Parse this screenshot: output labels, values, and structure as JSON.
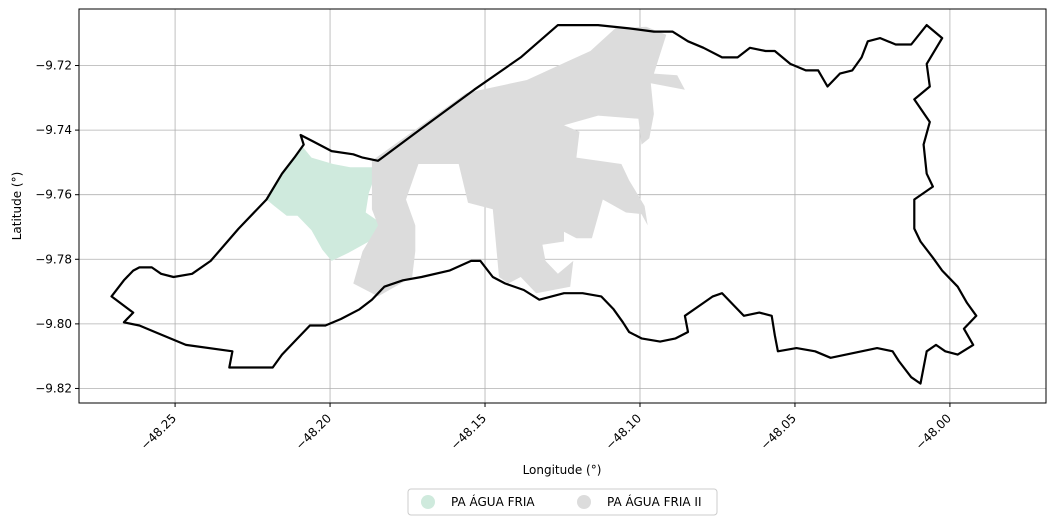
{
  "chart_data": {
    "type": "map",
    "xlabel": "Longitude (°)",
    "ylabel": "Latitude (°)",
    "xlim": [
      -48.281,
      -47.969
    ],
    "ylim": [
      -9.8245,
      -9.7025
    ],
    "grid": true,
    "x_ticks": [
      {
        "value": -48.25,
        "label": "−48.25"
      },
      {
        "value": -48.2,
        "label": "−48.20"
      },
      {
        "value": -48.15,
        "label": "−48.15"
      },
      {
        "value": -48.1,
        "label": "−48.10"
      },
      {
        "value": -48.05,
        "label": "−48.05"
      },
      {
        "value": -48.0,
        "label": "−48.00"
      }
    ],
    "y_ticks": [
      {
        "value": -9.72,
        "label": "−9.72"
      },
      {
        "value": -9.74,
        "label": "−9.74"
      },
      {
        "value": -9.76,
        "label": "−9.76"
      },
      {
        "value": -9.78,
        "label": "−9.78"
      },
      {
        "value": -9.8,
        "label": "−9.80"
      },
      {
        "value": -9.82,
        "label": "−9.82"
      }
    ],
    "legend_position": "bottom-center",
    "areas": [
      {
        "name": "PA ÁGUA FRIA",
        "color": "#cfeadd",
        "coords": [
          [
            -48.209,
            -9.745
          ],
          [
            -48.206,
            -9.7485
          ],
          [
            -48.199,
            -9.7505
          ],
          [
            -48.1935,
            -9.7515
          ],
          [
            -48.1845,
            -9.7515
          ],
          [
            -48.1875,
            -9.7595
          ],
          [
            -48.1885,
            -9.7655
          ],
          [
            -48.1825,
            -9.7695
          ],
          [
            -48.1865,
            -9.774
          ],
          [
            -48.194,
            -9.778
          ],
          [
            -48.1995,
            -9.7805
          ],
          [
            -48.2025,
            -9.777
          ],
          [
            -48.206,
            -9.771
          ],
          [
            -48.2105,
            -9.7665
          ],
          [
            -48.214,
            -9.7665
          ],
          [
            -48.218,
            -9.7635
          ],
          [
            -48.2205,
            -9.7615
          ],
          [
            -48.2155,
            -9.753
          ],
          [
            -48.2135,
            -9.7505
          ]
        ]
      },
      {
        "name": "PA ÁGUA FRIA II",
        "color": "#dcdcdc",
        "coords": [
          [
            -48.1865,
            -9.7495
          ],
          [
            -48.156,
            -9.7285
          ],
          [
            -48.1365,
            -9.7245
          ],
          [
            -48.124,
            -9.719
          ],
          [
            -48.116,
            -9.7155
          ],
          [
            -48.108,
            -9.7085
          ],
          [
            -48.098,
            -9.708
          ],
          [
            -48.0915,
            -9.7105
          ],
          [
            -48.0955,
            -9.7225
          ],
          [
            -48.088,
            -9.723
          ],
          [
            -48.0855,
            -9.7275
          ],
          [
            -48.0965,
            -9.7255
          ],
          [
            -48.0955,
            -9.735
          ],
          [
            -48.097,
            -9.7425
          ],
          [
            -48.0995,
            -9.7445
          ],
          [
            -48.1005,
            -9.7365
          ],
          [
            -48.1135,
            -9.7355
          ],
          [
            -48.1245,
            -9.7385
          ],
          [
            -48.1195,
            -9.7405
          ],
          [
            -48.1205,
            -9.7485
          ],
          [
            -48.106,
            -9.7505
          ],
          [
            -48.1035,
            -9.7555
          ],
          [
            -48.0985,
            -9.7635
          ],
          [
            -48.0975,
            -9.7695
          ],
          [
            -48.0995,
            -9.766
          ],
          [
            -48.1045,
            -9.7655
          ],
          [
            -48.112,
            -9.7615
          ],
          [
            -48.1155,
            -9.7735
          ],
          [
            -48.1205,
            -9.7735
          ],
          [
            -48.1285,
            -9.7695
          ],
          [
            -48.1335,
            -9.7685
          ],
          [
            -48.1375,
            -9.7645
          ],
          [
            -48.1365,
            -9.7565
          ],
          [
            -48.1305,
            -9.7595
          ],
          [
            -48.1205,
            -9.7595
          ],
          [
            -48.1195,
            -9.7675
          ],
          [
            -48.1245,
            -9.7695
          ],
          [
            -48.1245,
            -9.7745
          ],
          [
            -48.1315,
            -9.7755
          ],
          [
            -48.1305,
            -9.7805
          ],
          [
            -48.1265,
            -9.7845
          ],
          [
            -48.1215,
            -9.7805
          ],
          [
            -48.1225,
            -9.7885
          ],
          [
            -48.1335,
            -9.7905
          ],
          [
            -48.1385,
            -9.7855
          ],
          [
            -48.1425,
            -9.7875
          ],
          [
            -48.1455,
            -9.7855
          ],
          [
            -48.1475,
            -9.7645
          ],
          [
            -48.1555,
            -9.7625
          ],
          [
            -48.1585,
            -9.7505
          ],
          [
            -48.1715,
            -9.7505
          ],
          [
            -48.1755,
            -9.7615
          ],
          [
            -48.1725,
            -9.7695
          ],
          [
            -48.1725,
            -9.7775
          ],
          [
            -48.1735,
            -9.7855
          ],
          [
            -48.1845,
            -9.7915
          ],
          [
            -48.1925,
            -9.7875
          ],
          [
            -48.1895,
            -9.7775
          ],
          [
            -48.1845,
            -9.7695
          ],
          [
            -48.1865,
            -9.7645
          ]
        ]
      }
    ],
    "boundary": [
      [
        -48.2705,
        -9.7915
      ],
      [
        -48.2665,
        -9.7865
      ],
      [
        -48.2635,
        -9.7835
      ],
      [
        -48.2615,
        -9.7825
      ],
      [
        -48.2575,
        -9.7825
      ],
      [
        -48.2545,
        -9.7845
      ],
      [
        -48.2505,
        -9.7855
      ],
      [
        -48.2445,
        -9.7845
      ],
      [
        -48.2385,
        -9.7805
      ],
      [
        -48.2295,
        -9.7705
      ],
      [
        -48.2205,
        -9.7615
      ],
      [
        -48.2155,
        -9.7535
      ],
      [
        -48.2115,
        -9.7485
      ],
      [
        -48.2085,
        -9.7445
      ],
      [
        -48.2095,
        -9.7415
      ],
      [
        -48.2055,
        -9.7435
      ],
      [
        -48.1995,
        -9.7465
      ],
      [
        -48.1925,
        -9.7475
      ],
      [
        -48.1895,
        -9.7485
      ],
      [
        -48.1845,
        -9.7495
      ],
      [
        -48.1705,
        -9.7395
      ],
      [
        -48.1535,
        -9.7275
      ],
      [
        -48.1385,
        -9.7175
      ],
      [
        -48.1265,
        -9.7075
      ],
      [
        -48.1135,
        -9.7075
      ],
      [
        -48.1035,
        -9.7085
      ],
      [
        -48.0955,
        -9.7095
      ],
      [
        -48.0895,
        -9.7095
      ],
      [
        -48.0845,
        -9.7125
      ],
      [
        -48.0795,
        -9.7145
      ],
      [
        -48.0735,
        -9.7175
      ],
      [
        -48.0685,
        -9.7175
      ],
      [
        -48.0645,
        -9.7145
      ],
      [
        -48.0595,
        -9.7155
      ],
      [
        -48.0565,
        -9.7155
      ],
      [
        -48.0515,
        -9.7195
      ],
      [
        -48.0465,
        -9.7215
      ],
      [
        -48.0425,
        -9.7215
      ],
      [
        -48.0395,
        -9.7265
      ],
      [
        -48.0355,
        -9.7225
      ],
      [
        -48.0315,
        -9.7215
      ],
      [
        -48.0285,
        -9.7175
      ],
      [
        -48.0265,
        -9.7125
      ],
      [
        -48.0225,
        -9.7115
      ],
      [
        -48.0175,
        -9.7135
      ],
      [
        -48.0125,
        -9.7135
      ],
      [
        -48.0075,
        -9.7075
      ],
      [
        -48.0025,
        -9.7115
      ],
      [
        -48.0075,
        -9.7195
      ],
      [
        -48.0065,
        -9.7265
      ],
      [
        -48.0115,
        -9.7305
      ],
      [
        -48.0065,
        -9.7375
      ],
      [
        -48.0085,
        -9.7445
      ],
      [
        -48.0075,
        -9.7535
      ],
      [
        -48.0055,
        -9.7575
      ],
      [
        -48.0115,
        -9.7615
      ],
      [
        -48.0115,
        -9.7705
      ],
      [
        -48.0095,
        -9.7745
      ],
      [
        -48.0055,
        -9.7795
      ],
      [
        -48.0025,
        -9.7835
      ],
      [
        -47.9975,
        -9.7885
      ],
      [
        -47.9945,
        -9.7935
      ],
      [
        -47.9915,
        -9.7975
      ],
      [
        -47.9955,
        -9.8015
      ],
      [
        -47.9925,
        -9.8065
      ],
      [
        -47.9975,
        -9.8095
      ],
      [
        -48.0015,
        -9.8085
      ],
      [
        -48.0045,
        -9.8065
      ],
      [
        -48.0075,
        -9.8085
      ],
      [
        -48.0095,
        -9.8185
      ],
      [
        -48.0125,
        -9.8165
      ],
      [
        -48.0165,
        -9.8115
      ],
      [
        -48.0185,
        -9.8085
      ],
      [
        -48.0235,
        -9.8075
      ],
      [
        -48.0285,
        -9.8085
      ],
      [
        -48.0335,
        -9.8095
      ],
      [
        -48.0385,
        -9.8105
      ],
      [
        -48.0435,
        -9.8085
      ],
      [
        -48.0495,
        -9.8075
      ],
      [
        -48.0555,
        -9.8085
      ],
      [
        -48.0565,
        -9.8035
      ],
      [
        -48.0575,
        -9.7975
      ],
      [
        -48.0615,
        -9.7965
      ],
      [
        -48.0665,
        -9.7975
      ],
      [
        -48.0695,
        -9.7945
      ],
      [
        -48.0735,
        -9.7905
      ],
      [
        -48.0765,
        -9.7915
      ],
      [
        -48.0795,
        -9.7935
      ],
      [
        -48.0855,
        -9.7975
      ],
      [
        -48.0845,
        -9.8025
      ],
      [
        -48.0885,
        -9.8045
      ],
      [
        -48.0935,
        -9.8055
      ],
      [
        -48.0995,
        -9.8045
      ],
      [
        -48.1035,
        -9.8025
      ],
      [
        -48.1055,
        -9.7995
      ],
      [
        -48.1085,
        -9.7955
      ],
      [
        -48.1125,
        -9.7915
      ],
      [
        -48.1185,
        -9.7905
      ],
      [
        -48.1245,
        -9.7905
      ],
      [
        -48.1325,
        -9.7925
      ],
      [
        -48.1375,
        -9.7895
      ],
      [
        -48.1435,
        -9.7875
      ],
      [
        -48.1475,
        -9.7855
      ],
      [
        -48.1515,
        -9.7805
      ],
      [
        -48.1545,
        -9.7805
      ],
      [
        -48.1615,
        -9.7835
      ],
      [
        -48.1705,
        -9.7855
      ],
      [
        -48.1765,
        -9.7865
      ],
      [
        -48.1825,
        -9.7885
      ],
      [
        -48.1865,
        -9.7925
      ],
      [
        -48.1905,
        -9.7955
      ],
      [
        -48.1965,
        -9.7985
      ],
      [
        -48.2015,
        -9.8005
      ],
      [
        -48.2065,
        -9.8005
      ],
      [
        -48.2115,
        -9.8055
      ],
      [
        -48.2155,
        -9.8095
      ],
      [
        -48.2185,
        -9.8135
      ],
      [
        -48.2325,
        -9.8135
      ],
      [
        -48.2315,
        -9.8085
      ],
      [
        -48.2465,
        -9.8065
      ],
      [
        -48.2565,
        -9.8025
      ],
      [
        -48.2615,
        -9.8005
      ],
      [
        -48.2665,
        -9.7995
      ],
      [
        -48.2635,
        -9.7965
      ]
    ],
    "legend": [
      {
        "label": "PA ÁGUA FRIA",
        "color": "#cfeadd"
      },
      {
        "label": "PA ÁGUA FRIA II",
        "color": "#dcdcdc"
      }
    ]
  }
}
